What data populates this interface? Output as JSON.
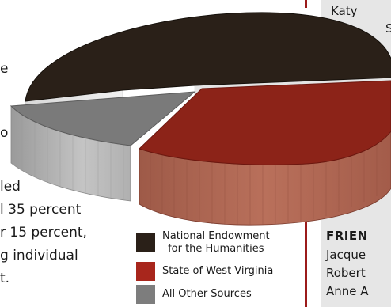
{
  "chart_data": {
    "type": "pie",
    "style": "3d-exploded",
    "title": "",
    "legend_placement": "bottom",
    "slices": [
      {
        "name": "National Endowment for the Humanities",
        "value": 50,
        "color": "#2a2018"
      },
      {
        "name": "State of West Virginia",
        "value": 35,
        "color": "#8c2318"
      },
      {
        "name": "All Other Sources",
        "value": 15,
        "color": "#7a7a7a"
      }
    ]
  },
  "legend": {
    "neh_line1": "National Endowment",
    "neh_line2": "for the Humanities",
    "state": "State of West Virginia",
    "other": "All Other Sources"
  },
  "text_fragments": {
    "sidebar_line1": "Katy",
    "sidebar_line2": "S",
    "left_e": "e",
    "left_o": "o",
    "body_line1": "led",
    "body_line2": "l 35 percent",
    "body_line3": "r 15 percent,",
    "body_line4": "g individual",
    "body_line5": "t.",
    "right_heading": "FRIEN",
    "right_line1": "Jacque",
    "right_line2": "Robert",
    "right_line3": "Anne A"
  }
}
